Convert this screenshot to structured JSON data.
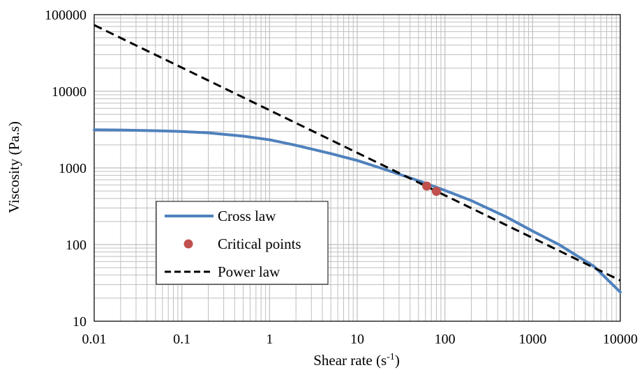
{
  "chart_data": {
    "type": "line",
    "xlabel": "Shear rate (s",
    "xlabel_sup": "-1",
    "xlabel_tail": ")",
    "ylabel": "Viscosity (Pa.s)",
    "x_scale": "log",
    "y_scale": "log",
    "xlim": [
      0.01,
      10000
    ],
    "ylim": [
      10,
      100000
    ],
    "x_ticks": [
      {
        "value": 0.01,
        "label": "0.01"
      },
      {
        "value": 0.1,
        "label": "0.1"
      },
      {
        "value": 1,
        "label": "1"
      },
      {
        "value": 10,
        "label": "10"
      },
      {
        "value": 100,
        "label": "100"
      },
      {
        "value": 1000,
        "label": "1000"
      },
      {
        "value": 10000,
        "label": "10000"
      }
    ],
    "y_ticks": [
      {
        "value": 10,
        "label": "10"
      },
      {
        "value": 100,
        "label": "100"
      },
      {
        "value": 1000,
        "label": "1000"
      },
      {
        "value": 10000,
        "label": "10000"
      },
      {
        "value": 100000,
        "label": "100000"
      }
    ],
    "grid": {
      "major": true,
      "minor": true,
      "color": "#bfbfbf"
    },
    "legend": {
      "placement": "lower-left-inside",
      "entries": [
        {
          "label": "Cross law",
          "style": "solid-line",
          "color": "#4f81bd"
        },
        {
          "label": "Critical points",
          "style": "marker",
          "color": "#c0504d"
        },
        {
          "label": "Power law",
          "style": "dashed-line",
          "color": "#000000"
        }
      ]
    },
    "series": [
      {
        "name": "Cross law",
        "kind": "line",
        "color": "#4f81bd",
        "x": [
          0.01,
          0.02,
          0.05,
          0.1,
          0.2,
          0.5,
          1,
          2,
          5,
          10,
          20,
          50,
          100,
          200,
          500,
          1000,
          2000,
          5000,
          10000
        ],
        "y": [
          3150,
          3120,
          3060,
          2990,
          2870,
          2600,
          2330,
          1970,
          1540,
          1250,
          970,
          680,
          510,
          375,
          230,
          150,
          100,
          52,
          24
        ]
      },
      {
        "name": "Critical points",
        "kind": "scatter",
        "color": "#c0504d",
        "x": [
          62,
          80
        ],
        "y": [
          580,
          495
        ]
      },
      {
        "name": "Power law",
        "kind": "dashed-line",
        "color": "#000000",
        "x": [
          0.01,
          10000
        ],
        "y": [
          73000,
          34
        ]
      }
    ]
  }
}
